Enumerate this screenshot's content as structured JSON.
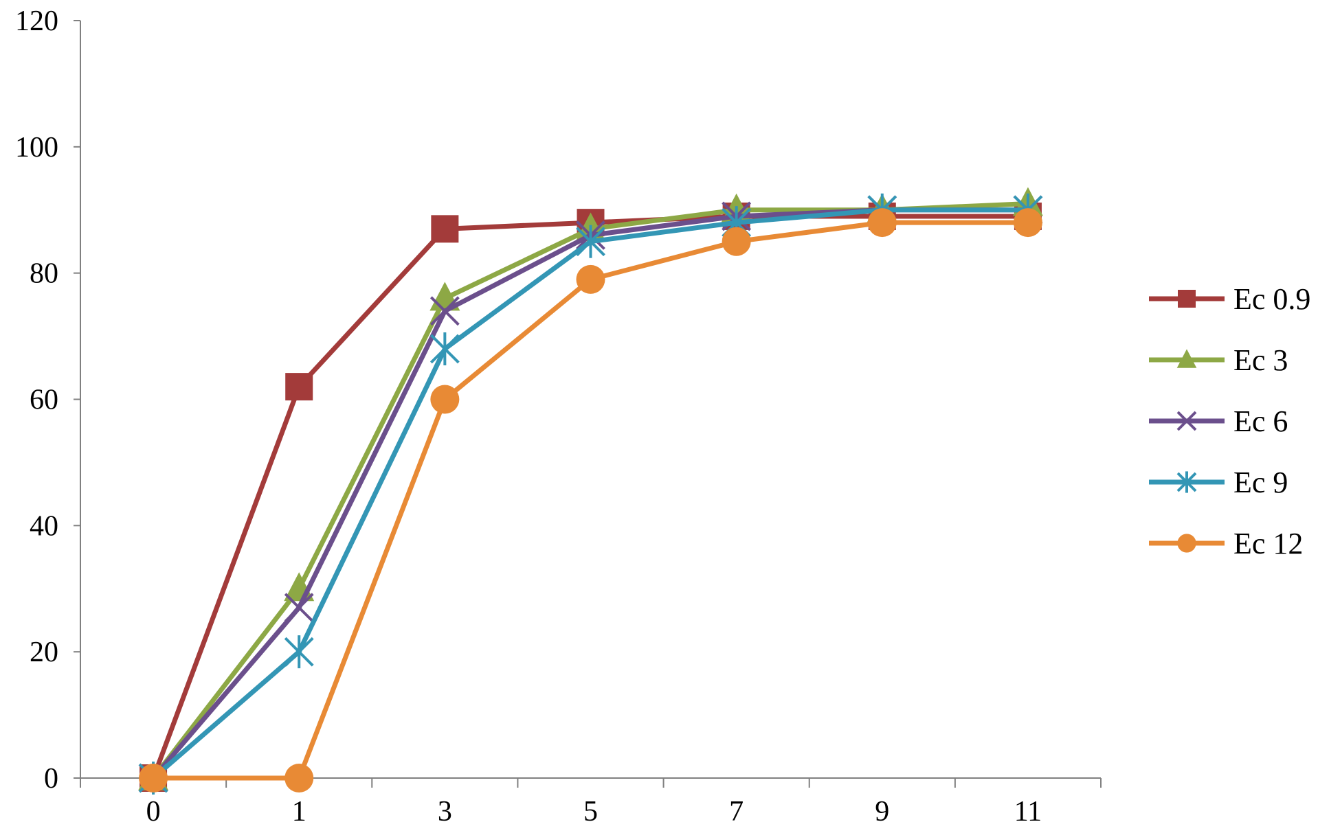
{
  "chart_data": {
    "type": "line",
    "title": "",
    "xlabel": "",
    "ylabel": "",
    "categories": [
      "0",
      "1",
      "3",
      "5",
      "7",
      "9",
      "11"
    ],
    "ylim": [
      0,
      120
    ],
    "yticks": [
      0,
      20,
      40,
      60,
      80,
      100,
      120
    ],
    "grid": false,
    "legend_position": "right",
    "series": [
      {
        "name": "Ec 0.9",
        "color": "#A33B3A",
        "marker": "square",
        "values": [
          0,
          62,
          87,
          88,
          89,
          89,
          89
        ]
      },
      {
        "name": "Ec 3",
        "color": "#8DA845",
        "marker": "triangle",
        "values": [
          0,
          30,
          76,
          87,
          90,
          90,
          91
        ]
      },
      {
        "name": "Ec 6",
        "color": "#6B4F8C",
        "marker": "x",
        "values": [
          0,
          27,
          74,
          86,
          89,
          90,
          90
        ]
      },
      {
        "name": "Ec 9",
        "color": "#3396B5",
        "marker": "star",
        "values": [
          0,
          20,
          68,
          85,
          88,
          90,
          90
        ]
      },
      {
        "name": "Ec 12",
        "color": "#E88A35",
        "marker": "circle",
        "values": [
          0,
          0,
          60,
          79,
          85,
          88,
          88
        ]
      }
    ]
  }
}
